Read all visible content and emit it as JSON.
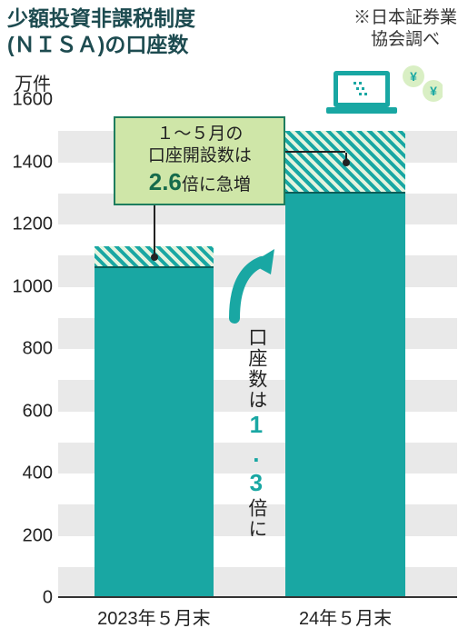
{
  "title_line1": "少額投資非課税制度",
  "title_line2": "(ＮＩＳＡ)の口座数",
  "note_prefix": "※",
  "note_line1": "日本証券業",
  "note_line2": "協会調べ",
  "unit_label": "万件",
  "chart": {
    "type": "bar",
    "ylim": [
      0,
      1600
    ],
    "ytick_step": 200,
    "yticks": [
      0,
      200,
      400,
      600,
      800,
      1000,
      1200,
      1400,
      1600
    ],
    "grid_band_width": 100,
    "grid_color": "#e9e9e9",
    "background_color": "#ffffff",
    "bar_color": "#19a7a3",
    "hatch_colors": [
      "#19a7a3",
      "#e4f4df"
    ],
    "bar_width_pct": 30,
    "bars": [
      {
        "x_label": "2023年５月末",
        "base": 1060,
        "hatch_to": 1130,
        "left_pct": 9
      },
      {
        "x_label": "24年５月末",
        "base": 1300,
        "hatch_to": 1500,
        "left_pct": 57
      }
    ],
    "label_fontsize": 20
  },
  "callout": {
    "line1": "１～５月の",
    "line2": "口座開設数は",
    "big": "2.6",
    "line3_tail": "倍に急増"
  },
  "vertical_annotation": {
    "pre": "口座数は",
    "big": "1.3",
    "post": "倍に"
  },
  "colors": {
    "title": "#1d4b50",
    "text": "#222222",
    "accent": "#19a7a3",
    "callout_bg": "#cfe6a8",
    "callout_border": "#1e7d5e",
    "callout_em": "#166b4c"
  },
  "deco": {
    "laptop_color": "#19a7a3",
    "coin_bg": "#d9efc4",
    "yen": "¥"
  }
}
